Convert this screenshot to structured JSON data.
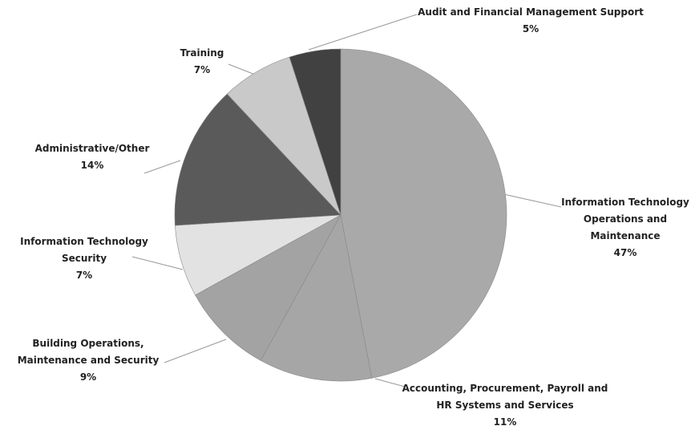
{
  "chart_data": {
    "type": "pie",
    "categories": [
      "Information Technology Operations and Maintenance",
      "Accounting, Procurement, Payroll and HR Systems and Services",
      "Building Operations, Maintenance and Security",
      "Information Technology Security",
      "Administrative/Other",
      "Training",
      "Audit and Financial Management Support"
    ],
    "values": [
      47,
      11,
      9,
      7,
      14,
      7,
      5
    ],
    "value_labels": [
      "47%",
      "11%",
      "9%",
      "7%",
      "14%",
      "7%",
      "5%"
    ],
    "colors": [
      "#a9a9a9",
      "#a6a6a6",
      "#a3a3a3",
      "#e2e2e2",
      "#5a5a5a",
      "#c9c9c9",
      "#414141"
    ]
  }
}
